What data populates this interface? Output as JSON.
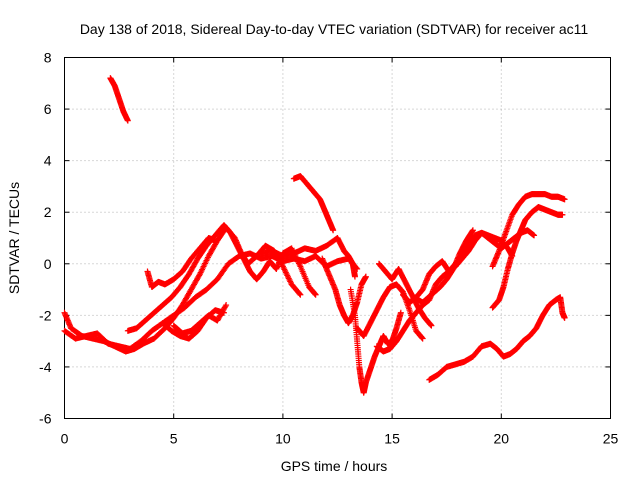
{
  "chart_data": {
    "type": "scatter",
    "title": "Day 138 of 2018, Sidereal Day-to-day VTEC variation (SDTVAR) for receiver ac11",
    "xlabel": "GPS time / hours",
    "ylabel": "SDTVAR / TECUs",
    "xlim": [
      0,
      25
    ],
    "ylim": [
      -6,
      8
    ],
    "xticks": [
      0,
      5,
      10,
      15,
      20,
      25
    ],
    "yticks": [
      -6,
      -4,
      -2,
      0,
      2,
      4,
      6,
      8
    ],
    "grid": true,
    "marker": "+",
    "color": "#ff0000",
    "series": [
      {
        "name": "track-1",
        "points": [
          [
            2.1,
            7.2
          ],
          [
            2.3,
            6.9
          ],
          [
            2.5,
            6.4
          ],
          [
            2.7,
            5.9
          ],
          [
            2.9,
            5.55
          ]
        ]
      },
      {
        "name": "track-2",
        "points": [
          [
            0.0,
            -2.6
          ],
          [
            0.5,
            -2.9
          ],
          [
            1.0,
            -2.8
          ],
          [
            1.5,
            -2.7
          ],
          [
            2.0,
            -3.1
          ],
          [
            2.5,
            -3.2
          ],
          [
            3.0,
            -3.3
          ],
          [
            3.5,
            -3.0
          ],
          [
            4.0,
            -2.6
          ],
          [
            4.5,
            -2.3
          ],
          [
            5.0,
            -2.0
          ],
          [
            5.5,
            -1.7
          ],
          [
            6.0,
            -1.3
          ],
          [
            6.5,
            -1.0
          ],
          [
            7.0,
            -0.6
          ],
          [
            7.5,
            0.0
          ],
          [
            8.0,
            0.3
          ],
          [
            8.5,
            0.4
          ],
          [
            9.0,
            0.2
          ],
          [
            9.5,
            0.3
          ],
          [
            10.0,
            0.1
          ],
          [
            10.5,
            0.2
          ],
          [
            11.0,
            0.1
          ],
          [
            11.5,
            0.3
          ],
          [
            12.0,
            -0.1
          ],
          [
            12.5,
            0.1
          ],
          [
            13.0,
            0.2
          ],
          [
            13.4,
            -0.2
          ]
        ]
      },
      {
        "name": "track-3",
        "points": [
          [
            0.0,
            -1.9
          ],
          [
            0.3,
            -2.5
          ],
          [
            0.8,
            -2.8
          ],
          [
            1.3,
            -2.9
          ],
          [
            1.8,
            -3.0
          ],
          [
            2.3,
            -3.2
          ],
          [
            2.8,
            -3.4
          ],
          [
            3.2,
            -3.3
          ],
          [
            3.6,
            -3.1
          ],
          [
            4.1,
            -2.9
          ],
          [
            4.6,
            -2.5
          ],
          [
            5.0,
            -2.1
          ],
          [
            5.4,
            -1.6
          ],
          [
            5.8,
            -1.0
          ],
          [
            6.2,
            -0.4
          ],
          [
            6.6,
            0.3
          ],
          [
            7.0,
            0.9
          ],
          [
            7.4,
            1.4
          ],
          [
            7.8,
            1.0
          ],
          [
            8.1,
            0.4
          ],
          [
            8.4,
            0.0
          ],
          [
            8.8,
            0.3
          ],
          [
            9.2,
            0.7
          ],
          [
            9.6,
            0.5
          ],
          [
            10.0,
            -0.1
          ],
          [
            10.4,
            -0.8
          ],
          [
            10.8,
            -1.2
          ]
        ]
      },
      {
        "name": "track-4",
        "points": [
          [
            2.9,
            -2.6
          ],
          [
            3.3,
            -2.5
          ],
          [
            3.7,
            -2.2
          ],
          [
            4.1,
            -1.9
          ],
          [
            4.5,
            -1.6
          ],
          [
            4.9,
            -1.3
          ],
          [
            5.3,
            -0.9
          ],
          [
            5.7,
            -0.4
          ],
          [
            6.1,
            0.2
          ],
          [
            6.5,
            0.7
          ],
          [
            6.9,
            1.1
          ],
          [
            7.3,
            1.5
          ],
          [
            7.6,
            1.2
          ],
          [
            7.9,
            0.7
          ],
          [
            8.2,
            0.2
          ],
          [
            8.5,
            -0.3
          ],
          [
            8.8,
            -0.6
          ],
          [
            9.1,
            -0.3
          ],
          [
            9.4,
            0.1
          ],
          [
            9.7,
            -0.2
          ],
          [
            10.0,
            0.4
          ],
          [
            10.4,
            0.6
          ],
          [
            10.8,
            -0.1
          ],
          [
            11.2,
            -0.9
          ],
          [
            11.5,
            -1.2
          ]
        ]
      },
      {
        "name": "track-5",
        "points": [
          [
            3.8,
            -0.3
          ],
          [
            4.0,
            -0.9
          ],
          [
            4.3,
            -0.7
          ],
          [
            4.6,
            -0.8
          ],
          [
            5.0,
            -0.6
          ],
          [
            5.4,
            -0.3
          ],
          [
            5.8,
            0.2
          ],
          [
            6.2,
            0.6
          ],
          [
            6.6,
            1.0
          ],
          [
            6.9,
            0.9
          ]
        ]
      },
      {
        "name": "track-6",
        "points": [
          [
            4.5,
            -2.3
          ],
          [
            4.9,
            -2.6
          ],
          [
            5.3,
            -2.8
          ],
          [
            5.7,
            -2.9
          ],
          [
            6.1,
            -2.6
          ],
          [
            6.5,
            -2.1
          ],
          [
            6.9,
            -1.8
          ],
          [
            7.3,
            -1.9
          ]
        ]
      },
      {
        "name": "track-7",
        "points": [
          [
            5.0,
            -2.4
          ],
          [
            5.4,
            -2.7
          ],
          [
            5.8,
            -2.6
          ],
          [
            6.2,
            -2.3
          ],
          [
            6.6,
            -2.0
          ],
          [
            7.0,
            -2.2
          ],
          [
            7.4,
            -1.6
          ]
        ]
      },
      {
        "name": "track-8",
        "points": [
          [
            10.5,
            3.3
          ],
          [
            10.8,
            3.4
          ],
          [
            11.1,
            3.1
          ],
          [
            11.4,
            2.8
          ],
          [
            11.7,
            2.5
          ],
          [
            11.9,
            2.1
          ],
          [
            12.1,
            1.7
          ],
          [
            12.3,
            1.3
          ]
        ]
      },
      {
        "name": "track-9",
        "points": [
          [
            9.0,
            0.4
          ],
          [
            9.5,
            0.5
          ],
          [
            10.0,
            0.3
          ],
          [
            10.5,
            0.4
          ],
          [
            11.0,
            0.6
          ],
          [
            11.5,
            0.5
          ],
          [
            12.0,
            0.7
          ],
          [
            12.5,
            1.0
          ],
          [
            12.8,
            0.5
          ],
          [
            13.0,
            0.3
          ],
          [
            13.2,
            0.0
          ],
          [
            13.3,
            -0.5
          ]
        ]
      },
      {
        "name": "track-10",
        "points": [
          [
            11.8,
            0.2
          ],
          [
            12.1,
            -0.4
          ],
          [
            12.4,
            -1.0
          ],
          [
            12.6,
            -1.6
          ],
          [
            12.8,
            -2.0
          ],
          [
            13.0,
            -2.3
          ],
          [
            13.2,
            -2.0
          ],
          [
            13.4,
            -1.5
          ],
          [
            13.6,
            -0.8
          ],
          [
            13.8,
            -0.5
          ]
        ]
      },
      {
        "name": "track-11",
        "points": [
          [
            13.1,
            -1.0
          ],
          [
            13.3,
            -2.0
          ],
          [
            13.4,
            -3.0
          ],
          [
            13.5,
            -4.0
          ],
          [
            13.6,
            -4.6
          ],
          [
            13.7,
            -5.0
          ],
          [
            13.8,
            -4.6
          ],
          [
            14.0,
            -4.1
          ],
          [
            14.2,
            -3.6
          ],
          [
            14.4,
            -3.2
          ],
          [
            14.6,
            -2.8
          ],
          [
            14.8,
            -3.1
          ],
          [
            15.0,
            -3.0
          ],
          [
            15.2,
            -2.5
          ],
          [
            15.4,
            -1.9
          ]
        ]
      },
      {
        "name": "track-12",
        "points": [
          [
            13.4,
            -2.5
          ],
          [
            13.7,
            -2.8
          ],
          [
            14.0,
            -2.3
          ],
          [
            14.3,
            -1.8
          ],
          [
            14.6,
            -1.3
          ],
          [
            14.9,
            -0.9
          ],
          [
            15.2,
            -0.8
          ],
          [
            15.5,
            -1.1
          ],
          [
            15.8,
            -1.8
          ],
          [
            16.1,
            -2.6
          ],
          [
            16.4,
            -2.9
          ]
        ]
      },
      {
        "name": "track-13",
        "points": [
          [
            14.4,
            0.0
          ],
          [
            14.7,
            -0.3
          ],
          [
            15.0,
            -0.6
          ],
          [
            15.3,
            -0.2
          ],
          [
            15.6,
            -0.7
          ],
          [
            15.9,
            -1.2
          ],
          [
            16.2,
            -1.7
          ],
          [
            16.5,
            -2.1
          ],
          [
            16.8,
            -2.4
          ]
        ]
      },
      {
        "name": "track-14",
        "points": [
          [
            14.3,
            -3.2
          ],
          [
            14.6,
            -3.4
          ],
          [
            14.9,
            -3.3
          ],
          [
            15.2,
            -3.0
          ],
          [
            15.5,
            -2.6
          ],
          [
            15.8,
            -2.2
          ],
          [
            16.1,
            -1.9
          ],
          [
            16.4,
            -1.6
          ],
          [
            16.7,
            -1.4
          ],
          [
            17.0,
            -0.8
          ],
          [
            17.3,
            -0.5
          ],
          [
            17.6,
            -0.3
          ],
          [
            17.9,
            0.0
          ],
          [
            18.2,
            0.3
          ],
          [
            18.5,
            0.8
          ],
          [
            18.8,
            1.1
          ],
          [
            19.1,
            1.2
          ],
          [
            19.4,
            1.0
          ],
          [
            19.7,
            0.8
          ],
          [
            20.0,
            0.6
          ],
          [
            20.3,
            0.8
          ],
          [
            20.6,
            1.0
          ],
          [
            20.9,
            1.2
          ],
          [
            21.2,
            1.3
          ],
          [
            21.5,
            1.1
          ]
        ]
      },
      {
        "name": "track-15",
        "points": [
          [
            15.5,
            -1.2
          ],
          [
            15.8,
            -1.5
          ],
          [
            16.1,
            -1.3
          ],
          [
            16.4,
            -1.0
          ],
          [
            16.7,
            -0.4
          ],
          [
            17.0,
            -0.1
          ],
          [
            17.3,
            0.1
          ],
          [
            17.6,
            -0.3
          ],
          [
            17.9,
            -0.1
          ],
          [
            18.2,
            0.2
          ],
          [
            18.5,
            0.5
          ],
          [
            18.8,
            0.9
          ],
          [
            19.1,
            1.2
          ],
          [
            19.4,
            1.1
          ],
          [
            19.7,
            1.0
          ],
          [
            20.0,
            0.9
          ],
          [
            20.3,
            0.6
          ],
          [
            20.5,
            0.3
          ]
        ]
      },
      {
        "name": "track-16",
        "points": [
          [
            16.0,
            -1.3
          ],
          [
            16.4,
            -1.5
          ],
          [
            16.8,
            -1.2
          ],
          [
            17.2,
            -0.9
          ],
          [
            17.5,
            -0.6
          ],
          [
            17.8,
            -0.2
          ],
          [
            18.1,
            0.4
          ],
          [
            18.4,
            0.9
          ],
          [
            18.7,
            1.3
          ]
        ]
      },
      {
        "name": "track-17",
        "points": [
          [
            19.6,
            -1.7
          ],
          [
            19.9,
            -1.4
          ],
          [
            20.1,
            -0.9
          ],
          [
            20.3,
            -0.2
          ],
          [
            20.5,
            0.4
          ],
          [
            20.7,
            0.9
          ],
          [
            20.9,
            1.3
          ],
          [
            21.1,
            1.7
          ],
          [
            21.4,
            2.0
          ],
          [
            21.7,
            2.2
          ],
          [
            22.0,
            2.1
          ],
          [
            22.3,
            2.0
          ],
          [
            22.6,
            1.9
          ],
          [
            22.8,
            1.9
          ]
        ]
      },
      {
        "name": "track-18",
        "points": [
          [
            19.6,
            -0.1
          ],
          [
            19.9,
            0.5
          ],
          [
            20.2,
            1.2
          ],
          [
            20.5,
            1.9
          ],
          [
            20.8,
            2.3
          ],
          [
            21.1,
            2.6
          ],
          [
            21.4,
            2.7
          ],
          [
            21.7,
            2.7
          ],
          [
            22.0,
            2.7
          ],
          [
            22.3,
            2.6
          ],
          [
            22.6,
            2.6
          ],
          [
            22.9,
            2.5
          ]
        ]
      },
      {
        "name": "track-19",
        "points": [
          [
            16.7,
            -4.5
          ],
          [
            17.1,
            -4.3
          ],
          [
            17.5,
            -4.0
          ],
          [
            17.9,
            -3.9
          ],
          [
            18.3,
            -3.8
          ],
          [
            18.7,
            -3.6
          ],
          [
            19.1,
            -3.2
          ],
          [
            19.5,
            -3.1
          ],
          [
            19.8,
            -3.3
          ],
          [
            20.1,
            -3.6
          ],
          [
            20.4,
            -3.5
          ],
          [
            20.7,
            -3.3
          ],
          [
            21.0,
            -3.0
          ],
          [
            21.3,
            -2.8
          ],
          [
            21.6,
            -2.5
          ],
          [
            21.9,
            -2.0
          ],
          [
            22.2,
            -1.6
          ],
          [
            22.5,
            -1.4
          ],
          [
            22.7,
            -1.3
          ],
          [
            22.8,
            -1.9
          ],
          [
            22.9,
            -2.1
          ]
        ]
      }
    ]
  }
}
